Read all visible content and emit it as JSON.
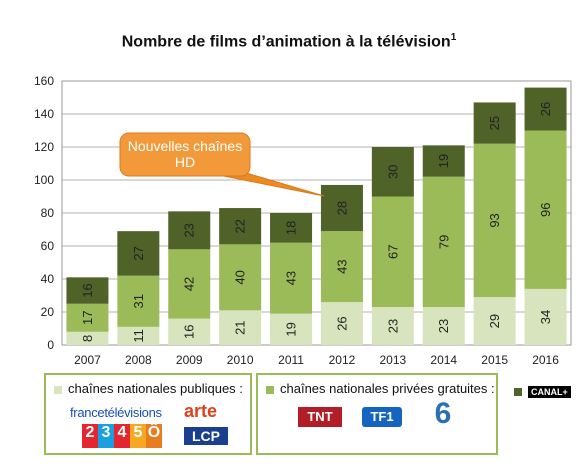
{
  "title": "Nombre de films d’animation à la télévision",
  "title_note": "1",
  "chart_data": {
    "type": "bar",
    "stacked": true,
    "title": "Nombre de films d’animation à la télévision",
    "categories": [
      "2007",
      "2008",
      "2009",
      "2010",
      "2011",
      "2012",
      "2013",
      "2014",
      "2015",
      "2016"
    ],
    "ylim": [
      0,
      160
    ],
    "yticks": [
      0,
      20,
      40,
      60,
      80,
      100,
      120,
      140,
      160
    ],
    "grid": true,
    "series": [
      {
        "name": "chaînes nationales publiques :",
        "color": "#d7e4bd",
        "values": [
          8,
          11,
          16,
          21,
          19,
          26,
          23,
          23,
          29,
          34
        ]
      },
      {
        "name": "chaînes nationales privées gratuites :",
        "color": "#9bbb59",
        "values": [
          17,
          31,
          42,
          40,
          43,
          43,
          67,
          79,
          93,
          96
        ]
      },
      {
        "name": "CANAL+",
        "color": "#4f6228",
        "values": [
          16,
          27,
          23,
          22,
          18,
          28,
          30,
          19,
          25,
          26
        ]
      }
    ],
    "annotation": {
      "text": "Nouvelles chaînes HD",
      "points_to": "2012"
    }
  },
  "annotation_lines": [
    "Nouvelles chaînes",
    "HD"
  ],
  "legend": {
    "public_label": "chaînes nationales publiques :",
    "private_label": "chaînes nationales privées gratuites :",
    "canal_label": "CANAL+"
  },
  "logos": {
    "france_tv": "francetélévisions",
    "arte": "arte",
    "lcp": "LCP",
    "numbers": [
      "2",
      "3",
      "4",
      "5",
      "Ô"
    ],
    "tnt": "TNT",
    "tf1": "TF1",
    "m6": "6"
  }
}
